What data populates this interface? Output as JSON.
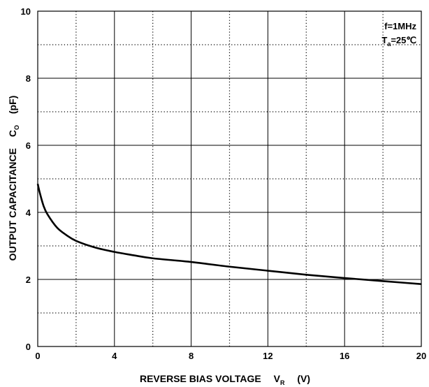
{
  "chart_data": {
    "type": "line",
    "title": "",
    "xlabel": {
      "main": "REVERSE BIAS VOLTAGE",
      "symbol": "V",
      "subscript": "R",
      "unit": "(V)"
    },
    "ylabel": {
      "main": "OUTPUT CAPACITANCE",
      "symbol": "C",
      "subscript": "O",
      "unit": "(pF)"
    },
    "xlim": [
      0,
      20
    ],
    "ylim": [
      0,
      10
    ],
    "x_ticks": [
      "0",
      "4",
      "8",
      "12",
      "16",
      "20"
    ],
    "x_tick_values": [
      0,
      4,
      8,
      12,
      16,
      20
    ],
    "y_ticks": [
      "0",
      "2",
      "4",
      "6",
      "8",
      "10"
    ],
    "y_tick_values": [
      0,
      2,
      4,
      6,
      8,
      10
    ],
    "x_grid_step": 2,
    "y_grid_step": 1,
    "grid": true,
    "annotations": {
      "freq": "f=1MHz",
      "temp_symbol": "T",
      "temp_subscript": "a",
      "temp_value": "=25℃"
    },
    "series": [
      {
        "x": [
          0,
          0.1,
          0.3,
          0.5,
          1,
          1.5,
          2,
          3,
          4,
          5,
          6,
          8,
          10,
          12,
          14,
          16,
          18,
          20
        ],
        "y": [
          4.85,
          4.6,
          4.2,
          3.95,
          3.55,
          3.32,
          3.15,
          2.95,
          2.82,
          2.72,
          2.63,
          2.52,
          2.38,
          2.26,
          2.14,
          2.04,
          1.95,
          1.86
        ]
      }
    ]
  }
}
